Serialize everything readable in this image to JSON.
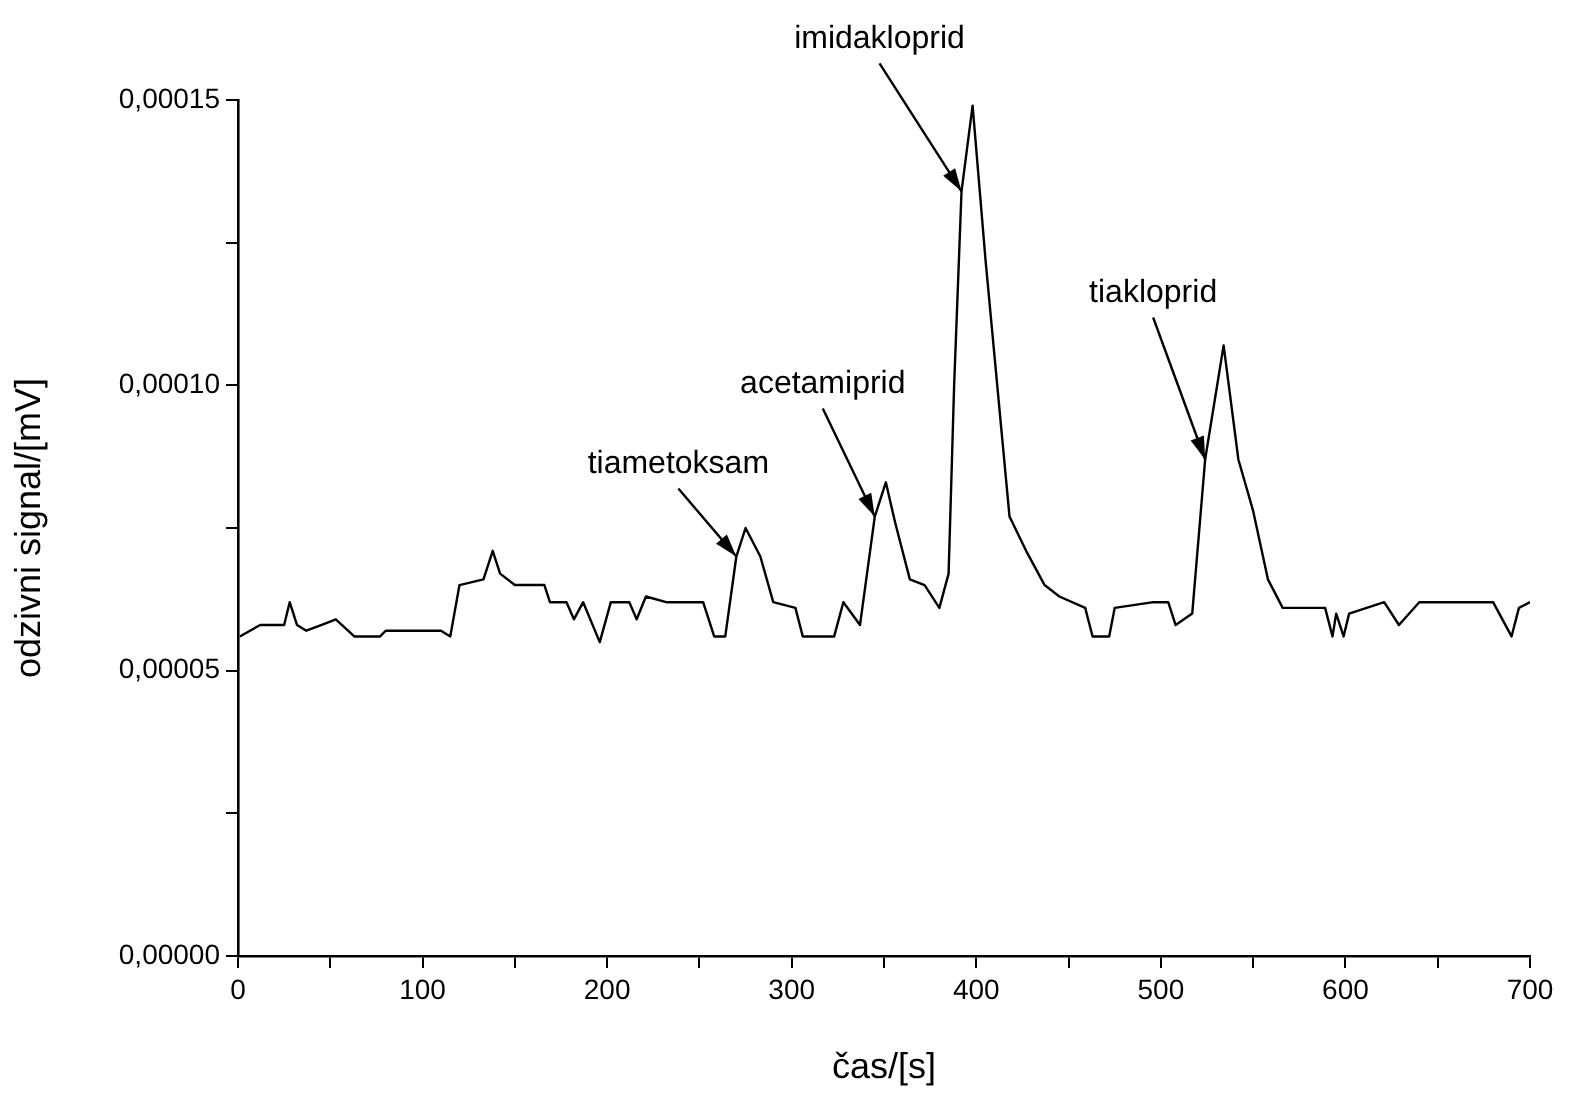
{
  "chart_data": {
    "type": "line",
    "xlabel": "čas/[s]",
    "ylabel": "odzivni signal/[mV]",
    "xlim": [
      0,
      700
    ],
    "ylim": [
      0,
      0.00015
    ],
    "xticks": [
      0,
      {
        "value": 50,
        "label": null
      },
      100,
      {
        "value": 150,
        "label": null
      },
      200,
      {
        "value": 250,
        "label": null
      },
      300,
      {
        "value": 350,
        "label": null
      },
      400,
      {
        "value": 450,
        "label": null
      },
      500,
      {
        "value": 550,
        "label": null
      },
      600,
      {
        "value": 650,
        "label": null
      },
      700
    ],
    "yticks": [
      {
        "value": 0,
        "label": "0,00000"
      },
      {
        "value": 2.5e-05,
        "label": null
      },
      {
        "value": 5e-05,
        "label": "0,00005"
      },
      {
        "value": 7.5e-05,
        "label": null
      },
      {
        "value": 0.0001,
        "label": "0,00010"
      },
      {
        "value": 0.000125,
        "label": null
      },
      {
        "value": 0.00015,
        "label": "0,00015"
      }
    ],
    "grid": false,
    "legend": false,
    "marker": "none",
    "line_style": "solid",
    "x": [
      1,
      12,
      25,
      28,
      32,
      37,
      45,
      53,
      63,
      77,
      80,
      110,
      115,
      120,
      133,
      138,
      142,
      150,
      166,
      169,
      178,
      182,
      187,
      196,
      202,
      212,
      216,
      221,
      232,
      252,
      258,
      264,
      270,
      275,
      283,
      290,
      302,
      306,
      323,
      328,
      337,
      345,
      351,
      356,
      364,
      372,
      380,
      385,
      388,
      392,
      398,
      405,
      418,
      427,
      437,
      445,
      459,
      463,
      472,
      475,
      496,
      504,
      508,
      517,
      524,
      534,
      542,
      550,
      558,
      566,
      589,
      593,
      595,
      599,
      602,
      621,
      629,
      640,
      680,
      690,
      694,
      700
    ],
    "series": [
      {
        "color": "#000000",
        "values": [
          5.6e-05,
          5.8e-05,
          5.8e-05,
          6.2e-05,
          5.8e-05,
          5.7e-05,
          5.8e-05,
          5.9e-05,
          5.6e-05,
          5.6e-05,
          5.7e-05,
          5.7e-05,
          5.6e-05,
          6.5e-05,
          6.6e-05,
          7.1e-05,
          6.7e-05,
          6.5e-05,
          6.5e-05,
          6.2e-05,
          6.2e-05,
          5.9e-05,
          6.2e-05,
          5.5e-05,
          6.2e-05,
          6.2e-05,
          5.9e-05,
          6.3e-05,
          6.2e-05,
          6.2e-05,
          5.6e-05,
          5.6e-05,
          7e-05,
          7.5e-05,
          7e-05,
          6.2e-05,
          6.1e-05,
          5.6e-05,
          5.6e-05,
          6.2e-05,
          5.8e-05,
          7.7e-05,
          8.3e-05,
          7.6e-05,
          6.6e-05,
          6.5e-05,
          6.1e-05,
          6.7e-05,
          0.0001,
          0.000134,
          0.000149,
          0.000122,
          7.7e-05,
          7.1e-05,
          6.5e-05,
          6.3e-05,
          6.1e-05,
          5.6e-05,
          5.6e-05,
          6.1e-05,
          6.2e-05,
          6.2e-05,
          5.8e-05,
          6e-05,
          8.7e-05,
          0.000107,
          8.7e-05,
          7.8e-05,
          6.6e-05,
          6.1e-05,
          6.1e-05,
          5.6e-05,
          6e-05,
          5.6e-05,
          6e-05,
          6.2e-05,
          5.8e-05,
          6.2e-05,
          6.2e-05,
          5.6e-05,
          6.1e-05,
          6.2e-05
        ]
      }
    ],
    "annotations": [
      {
        "text": "tiametoksam",
        "x": 270,
        "y": 7e-05
      },
      {
        "text": "acetamiprid",
        "x": 345,
        "y": 7.7e-05
      },
      {
        "text": "imidakloprid",
        "x": 392,
        "y": 0.000134
      },
      {
        "text": "tiakloprid",
        "x": 524,
        "y": 8.7e-05
      }
    ]
  }
}
